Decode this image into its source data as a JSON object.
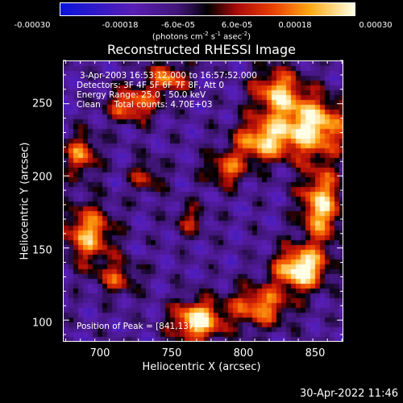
{
  "colorbar": {
    "ticks": [
      "-0.00030",
      "-0.00018",
      "-6.0e-05",
      "6.0e-05",
      "0.00018",
      "0.00030"
    ],
    "unit_text": "(photons cm",
    "unit_sup1": "-2",
    "unit_mid": " s",
    "unit_sup2": "-1",
    "unit_end": " asec",
    "unit_sup3": "-2",
    "unit_close": ")"
  },
  "chart_data": {
    "type": "heatmap",
    "title": "Reconstructed RHESSI Image",
    "xlabel": "Heliocentric X (arcsec)",
    "ylabel": "Heliocentric Y (arcsec)",
    "xlim": [
      673,
      866
    ],
    "ylim": [
      85,
      280
    ],
    "xticks": [
      700,
      750,
      800,
      850
    ],
    "yticks": [
      100,
      150,
      200,
      250
    ],
    "zlim": [
      -0.0003,
      0.0003
    ],
    "grid": false,
    "annotations": [
      "3-Apr-2003 16:53:12.000 to 16:57:52.000",
      "Detectors: 3F 4F 5F 6F 7F 8F, Att 0",
      "Energy Range: 25.0 - 50.0 keV",
      "Clean     Total counts: 4.70E+03",
      "Position of Peak = [841,137]"
    ],
    "hotspots": [
      {
        "x": 836,
        "y": 136,
        "amp": 1.0,
        "sx": 12,
        "sy": 10
      },
      {
        "x": 850,
        "y": 180,
        "amp": 0.8,
        "sx": 10,
        "sy": 18
      },
      {
        "x": 845,
        "y": 235,
        "amp": 0.85,
        "sx": 16,
        "sy": 14
      },
      {
        "x": 810,
        "y": 225,
        "amp": 0.75,
        "sx": 14,
        "sy": 10
      },
      {
        "x": 820,
        "y": 258,
        "amp": 0.7,
        "sx": 12,
        "sy": 12
      },
      {
        "x": 765,
        "y": 100,
        "amp": 0.9,
        "sx": 12,
        "sy": 10
      },
      {
        "x": 808,
        "y": 110,
        "amp": 0.65,
        "sx": 14,
        "sy": 10
      },
      {
        "x": 690,
        "y": 160,
        "amp": 0.7,
        "sx": 12,
        "sy": 14
      },
      {
        "x": 685,
        "y": 215,
        "amp": 0.6,
        "sx": 8,
        "sy": 10
      },
      {
        "x": 720,
        "y": 250,
        "amp": 0.65,
        "sx": 12,
        "sy": 8
      },
      {
        "x": 745,
        "y": 268,
        "amp": 0.6,
        "sx": 10,
        "sy": 8
      },
      {
        "x": 785,
        "y": 205,
        "amp": 0.55,
        "sx": 10,
        "sy": 8
      },
      {
        "x": 710,
        "y": 130,
        "amp": 0.45,
        "sx": 10,
        "sy": 8
      },
      {
        "x": 760,
        "y": 170,
        "amp": 0.35,
        "sx": 8,
        "sy": 8
      },
      {
        "x": 730,
        "y": 200,
        "amp": 0.4,
        "sx": 8,
        "sy": 8
      }
    ]
  },
  "footer": {
    "timestamp": "30-Apr-2022 11:46"
  }
}
